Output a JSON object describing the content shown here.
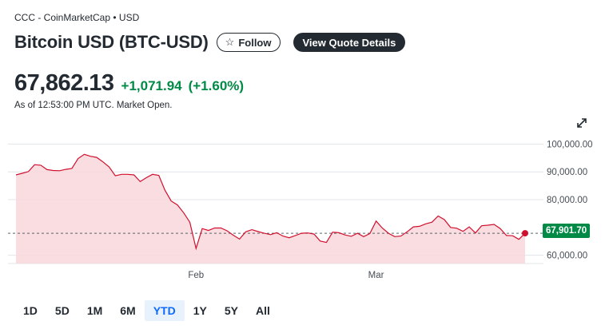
{
  "header": {
    "source": "CCC - CoinMarketCap • USD",
    "title": "Bitcoin USD (BTC-USD)",
    "follow_label": "Follow",
    "quote_label": "View Quote Details"
  },
  "quote": {
    "price": "67,862.13",
    "change": "+1,071.94",
    "change_pct": "(+1.60%)",
    "as_of": "As of 12:53:00 PM UTC. Market Open."
  },
  "ranges": [
    {
      "label": "1D",
      "active": false
    },
    {
      "label": "5D",
      "active": false
    },
    {
      "label": "1M",
      "active": false
    },
    {
      "label": "6M",
      "active": false
    },
    {
      "label": "YTD",
      "active": true
    },
    {
      "label": "1Y",
      "active": false
    },
    {
      "label": "5Y",
      "active": false
    },
    {
      "label": "All",
      "active": false
    }
  ],
  "colors": {
    "line": "#d0102e",
    "fill": "#f9d7dc",
    "up": "#008a46",
    "grid": "#e0e4e9"
  },
  "chart_data": {
    "type": "area",
    "y_ticks": [
      "100,000.00",
      "90,000.00",
      "80,000.00",
      "60,000.00"
    ],
    "y_tick_values": [
      100000,
      90000,
      80000,
      60000
    ],
    "x_ticks": [
      "Feb",
      "Mar"
    ],
    "x_tick_index": [
      29,
      58
    ],
    "last_value_label": "67,901.70",
    "last_value": 67901.7,
    "ylim": [
      57000,
      103000
    ],
    "grid": true,
    "values": [
      88900,
      89500,
      90100,
      92600,
      92400,
      90800,
      90500,
      90400,
      90900,
      91200,
      94800,
      96300,
      95600,
      95200,
      93600,
      91800,
      88600,
      89100,
      89100,
      88900,
      86500,
      87900,
      89100,
      88700,
      83400,
      79500,
      78100,
      75300,
      71900,
      62400,
      69600,
      68900,
      69800,
      69800,
      68800,
      67200,
      65800,
      68400,
      69200,
      68500,
      67900,
      67400,
      68100,
      66900,
      66300,
      67100,
      67900,
      68000,
      67600,
      65100,
      64600,
      68300,
      68100,
      67300,
      66800,
      67900,
      66700,
      67800,
      72300,
      69800,
      67900,
      66700,
      66900,
      68400,
      70200,
      70400,
      71300,
      71900,
      74100,
      72800,
      70000,
      69700,
      68600,
      70200,
      68000,
      70600,
      70800,
      71100,
      69600,
      67100,
      67000,
      65700,
      67900
    ]
  }
}
